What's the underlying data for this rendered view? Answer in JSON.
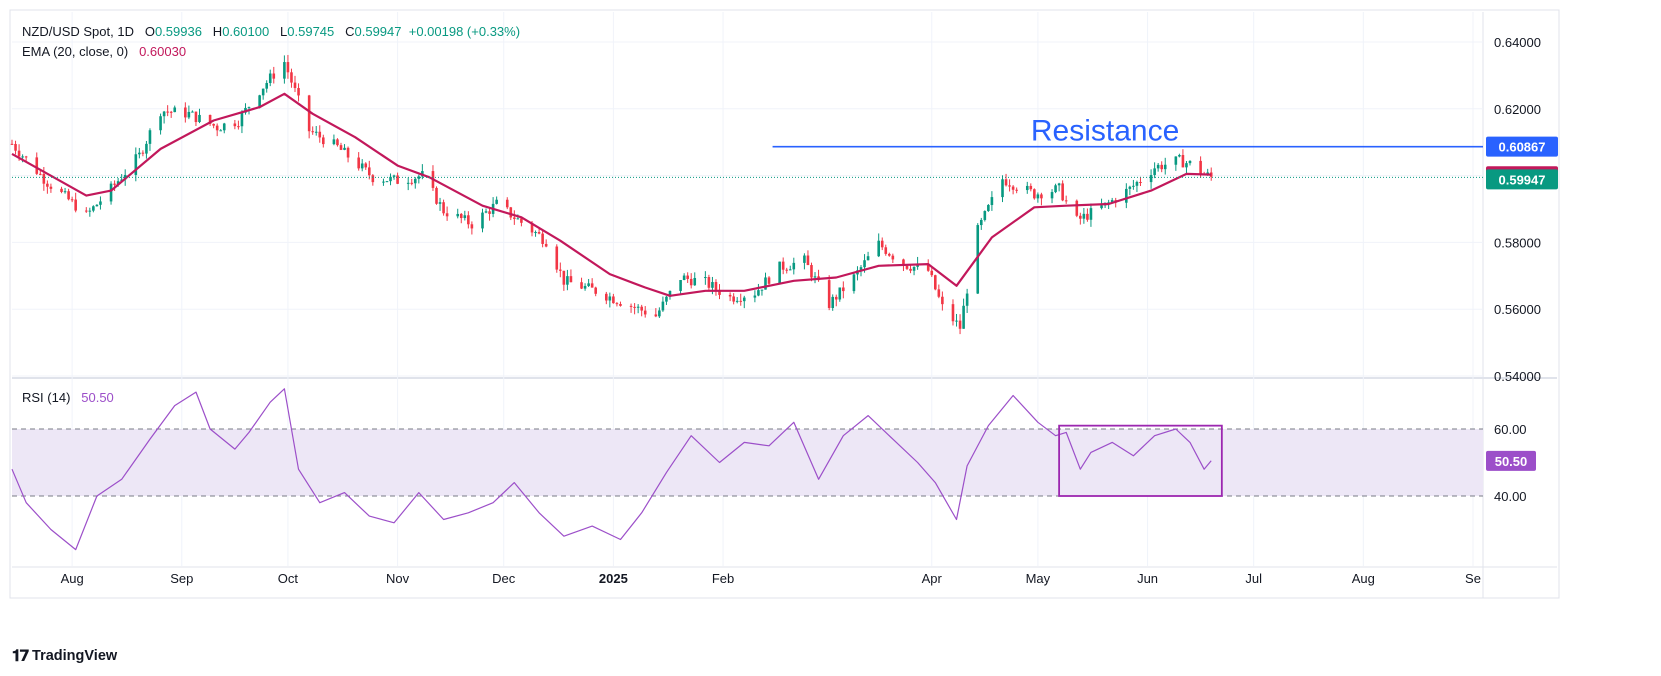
{
  "header": {
    "symbol": "NZD/USD Spot, 1D",
    "open_label": "O",
    "open": "0.59936",
    "high_label": "H",
    "high": "0.60100",
    "low_label": "L",
    "low": "0.59745",
    "close_label": "C",
    "close": "0.59947",
    "change": "+0.00198 (+0.33%)",
    "ema_label": "EMA (20, close, 0)",
    "ema_value": "0.60030",
    "rsi_label": "RSI (14)",
    "rsi_value": "50.50"
  },
  "branding": {
    "name": "TradingView"
  },
  "colors": {
    "up": "#089981",
    "down": "#f23645",
    "ema": "#c2185b",
    "rsi": "#9c4fc9",
    "resistance": "#2962ff",
    "band": "#ede7f6"
  },
  "chart_data": [
    {
      "type": "candlestick",
      "title": "NZD/USD Spot, 1D",
      "x_ticks": [
        "Aug",
        "Sep",
        "Oct",
        "Nov",
        "Dec",
        "2025",
        "Feb",
        "Apr",
        "May",
        "Jun",
        "Jul",
        "Aug",
        "Se"
      ],
      "y_ticks": [
        "0.64000",
        "0.62000",
        "0.60000",
        "0.58000",
        "0.56000",
        "0.54000"
      ],
      "ylim": [
        0.54,
        0.645
      ],
      "price_labels": {
        "resistance": "0.60867",
        "ema": "0.60030",
        "last": "0.59947"
      },
      "resistance": {
        "label": "Resistance",
        "value": 0.60867
      },
      "last_price": 0.59947,
      "price_path": [
        [
          "2024-07-15",
          0.6095
        ],
        [
          "2024-07-25",
          0.598
        ],
        [
          "2024-08-02",
          0.591
        ],
        [
          "2024-08-05",
          0.588
        ],
        [
          "2024-08-12",
          0.596
        ],
        [
          "2024-08-20",
          0.606
        ],
        [
          "2024-08-26",
          0.6195
        ],
        [
          "2024-09-03",
          0.6185
        ],
        [
          "2024-09-11",
          0.6145
        ],
        [
          "2024-09-17",
          0.6165
        ],
        [
          "2024-09-23",
          0.6255
        ],
        [
          "2024-09-30",
          0.634
        ],
        [
          "2024-10-07",
          0.6135
        ],
        [
          "2024-10-15",
          0.6085
        ],
        [
          "2024-10-25",
          0.5995
        ],
        [
          "2024-11-01",
          0.5985
        ],
        [
          "2024-11-08",
          0.6
        ],
        [
          "2024-11-14",
          0.5895
        ],
        [
          "2024-11-22",
          0.5855
        ],
        [
          "2024-11-29",
          0.5915
        ],
        [
          "2024-12-06",
          0.586
        ],
        [
          "2024-12-13",
          0.5805
        ],
        [
          "2024-12-18",
          0.5685
        ],
        [
          "2024-12-27",
          0.5655
        ],
        [
          "2025-01-06",
          0.561
        ],
        [
          "2025-01-13",
          0.558
        ],
        [
          "2025-01-20",
          0.5695
        ],
        [
          "2025-01-27",
          0.568
        ],
        [
          "2025-02-03",
          0.5635
        ],
        [
          "2025-02-10",
          0.565
        ],
        [
          "2025-02-17",
          0.5725
        ],
        [
          "2025-02-24",
          0.5745
        ],
        [
          "2025-03-03",
          0.5615
        ],
        [
          "2025-03-10",
          0.5695
        ],
        [
          "2025-03-17",
          0.5795
        ],
        [
          "2025-03-24",
          0.5735
        ],
        [
          "2025-03-31",
          0.5715
        ],
        [
          "2025-04-04",
          0.5605
        ],
        [
          "2025-04-09",
          0.5545
        ],
        [
          "2025-04-14",
          0.5835
        ],
        [
          "2025-04-21",
          0.599
        ],
        [
          "2025-04-30",
          0.5945
        ],
        [
          "2025-05-07",
          0.596
        ],
        [
          "2025-05-12",
          0.5865
        ],
        [
          "2025-05-20",
          0.591
        ],
        [
          "2025-05-27",
          0.596
        ],
        [
          "2025-06-03",
          0.6025
        ],
        [
          "2025-06-10",
          0.6045
        ],
        [
          "2025-06-13",
          0.6035
        ],
        [
          "2025-06-17",
          0.6005
        ],
        [
          "2025-06-19",
          0.5995
        ]
      ],
      "ema_path": [
        [
          "2024-07-15",
          0.6065
        ],
        [
          "2024-08-05",
          0.594
        ],
        [
          "2024-08-12",
          0.5955
        ],
        [
          "2024-08-26",
          0.608
        ],
        [
          "2024-09-10",
          0.6165
        ],
        [
          "2024-09-23",
          0.6205
        ],
        [
          "2024-09-30",
          0.6245
        ],
        [
          "2024-10-08",
          0.6185
        ],
        [
          "2024-10-20",
          0.6115
        ],
        [
          "2024-11-01",
          0.603
        ],
        [
          "2024-11-10",
          0.5995
        ],
        [
          "2024-11-25",
          0.591
        ],
        [
          "2024-12-06",
          0.5875
        ],
        [
          "2024-12-17",
          0.5805
        ],
        [
          "2024-12-31",
          0.5705
        ],
        [
          "2025-01-10",
          0.5665
        ],
        [
          "2025-01-17",
          0.564
        ],
        [
          "2025-01-27",
          0.5655
        ],
        [
          "2025-02-07",
          0.5655
        ],
        [
          "2025-02-21",
          0.5685
        ],
        [
          "2025-03-05",
          0.5695
        ],
        [
          "2025-03-17",
          0.573
        ],
        [
          "2025-03-31",
          0.5735
        ],
        [
          "2025-04-08",
          0.567
        ],
        [
          "2025-04-18",
          0.5815
        ],
        [
          "2025-04-30",
          0.5905
        ],
        [
          "2025-05-09",
          0.591
        ],
        [
          "2025-05-21",
          0.5915
        ],
        [
          "2025-06-02",
          0.5955
        ],
        [
          "2025-06-12",
          0.6005
        ],
        [
          "2025-06-19",
          0.6003
        ]
      ]
    },
    {
      "type": "line",
      "title": "RSI (14)",
      "y_ticks": [
        "60.00",
        "40.00"
      ],
      "ylim": [
        22,
        77
      ],
      "band": [
        40,
        60
      ],
      "value_label": "50.50",
      "last_value": 50.5,
      "highlight_range": {
        "from": "2025-05-07",
        "to": "2025-06-22",
        "low": 40,
        "high": 61
      },
      "values": [
        [
          "2024-07-15",
          48
        ],
        [
          "2024-07-19",
          38
        ],
        [
          "2024-07-26",
          30
        ],
        [
          "2024-08-02",
          24
        ],
        [
          "2024-08-08",
          40
        ],
        [
          "2024-08-15",
          45
        ],
        [
          "2024-08-23",
          57
        ],
        [
          "2024-08-30",
          67
        ],
        [
          "2024-09-05",
          71
        ],
        [
          "2024-09-09",
          60
        ],
        [
          "2024-09-16",
          54
        ],
        [
          "2024-09-20",
          59
        ],
        [
          "2024-09-26",
          68
        ],
        [
          "2024-09-30",
          72
        ],
        [
          "2024-10-04",
          48
        ],
        [
          "2024-10-10",
          38
        ],
        [
          "2024-10-17",
          41
        ],
        [
          "2024-10-24",
          34
        ],
        [
          "2024-10-31",
          32
        ],
        [
          "2024-11-07",
          41
        ],
        [
          "2024-11-14",
          33
        ],
        [
          "2024-11-21",
          35
        ],
        [
          "2024-11-28",
          38
        ],
        [
          "2024-12-04",
          44
        ],
        [
          "2024-12-11",
          35
        ],
        [
          "2024-12-18",
          28
        ],
        [
          "2024-12-26",
          31
        ],
        [
          "2025-01-03",
          27
        ],
        [
          "2025-01-09",
          35
        ],
        [
          "2025-01-16",
          47
        ],
        [
          "2025-01-23",
          58
        ],
        [
          "2025-01-31",
          50
        ],
        [
          "2025-02-07",
          56
        ],
        [
          "2025-02-14",
          55
        ],
        [
          "2025-02-21",
          62
        ],
        [
          "2025-02-28",
          45
        ],
        [
          "2025-03-07",
          58
        ],
        [
          "2025-03-14",
          64
        ],
        [
          "2025-03-21",
          57
        ],
        [
          "2025-03-28",
          50
        ],
        [
          "2025-04-02",
          44
        ],
        [
          "2025-04-08",
          33
        ],
        [
          "2025-04-11",
          49
        ],
        [
          "2025-04-17",
          61
        ],
        [
          "2025-04-24",
          70
        ],
        [
          "2025-05-01",
          62
        ],
        [
          "2025-05-06",
          58
        ],
        [
          "2025-05-09",
          59
        ],
        [
          "2025-05-13",
          48
        ],
        [
          "2025-05-16",
          53
        ],
        [
          "2025-05-22",
          56
        ],
        [
          "2025-05-28",
          52
        ],
        [
          "2025-06-03",
          58
        ],
        [
          "2025-06-09",
          60
        ],
        [
          "2025-06-13",
          56
        ],
        [
          "2025-06-17",
          48
        ],
        [
          "2025-06-19",
          50.5
        ]
      ]
    }
  ]
}
